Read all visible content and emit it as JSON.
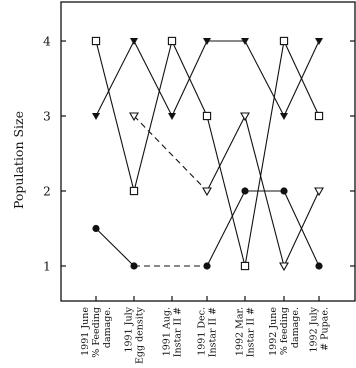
{
  "chart_data": {
    "type": "line",
    "ylabel": "Population Size",
    "xlabel": "",
    "ylim": [
      0.5,
      4.5
    ],
    "yticks": [
      1,
      2,
      3,
      4
    ],
    "grid": false,
    "categories": [
      [
        "1991 June",
        "% Feeding",
        "damage."
      ],
      [
        "1991 July",
        "Egg density"
      ],
      [
        "1991 Aug.",
        "Instar II #"
      ],
      [
        "1991 Dec.",
        "Instar II #"
      ],
      [
        "1992 Mar.",
        "Instar II #"
      ],
      [
        "1992 June",
        "% feeding",
        "damage."
      ],
      [
        "1992 July",
        "# Pupae."
      ]
    ],
    "series": [
      {
        "marker": "filled-triangle-down",
        "line": "solid",
        "values": [
          3,
          4,
          3,
          4,
          4,
          3,
          4
        ]
      },
      {
        "marker": "open-square",
        "line": "solid",
        "values": [
          4,
          2,
          4,
          3,
          1,
          4,
          3
        ]
      },
      {
        "marker": "open-triangle-down",
        "line": "mixed",
        "dashed_segments": [
          1,
          2
        ],
        "values": [
          null,
          3,
          null,
          2,
          3,
          1,
          2
        ]
      },
      {
        "marker": "filled-circle",
        "line": "mixed",
        "dashed_segments": [
          1,
          2
        ],
        "values": [
          1.5,
          1,
          null,
          1,
          2,
          2,
          1
        ]
      }
    ]
  }
}
